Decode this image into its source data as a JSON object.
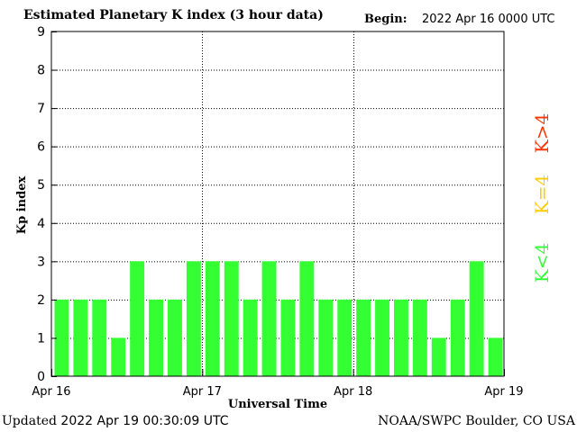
{
  "header": {
    "title": "Estimated Planetary K index (3 hour data)",
    "begin_label": "Begin:",
    "begin_value": "2022 Apr 16 0000 UTC"
  },
  "footer": {
    "updated_label": "Updated",
    "updated_value": "2022 Apr 19 00:30:09 UTC",
    "source": "NOAA/SWPC Boulder, CO USA"
  },
  "legend": {
    "low": {
      "text": "K<4",
      "color": "#33ff33"
    },
    "equal": {
      "text": "K=4",
      "color": "#ffcc00"
    },
    "high": {
      "text": "K>4",
      "color": "#ff3300"
    }
  },
  "chart_data": {
    "type": "bar",
    "title": "Estimated Planetary K index (3 hour data)",
    "xlabel": "Universal Time",
    "ylabel": "Kp index",
    "ylim": [
      0,
      9
    ],
    "yticks": [
      "0",
      "1",
      "2",
      "3",
      "4",
      "5",
      "6",
      "7",
      "8",
      "9"
    ],
    "xticks": [
      "Apr 16",
      "Apr 17",
      "Apr 18",
      "Apr 19"
    ],
    "grid": true,
    "bar_color": "#33ff33",
    "values": [
      2,
      2,
      2,
      1,
      3,
      2,
      2,
      3,
      3,
      3,
      2,
      3,
      2,
      3,
      2,
      2,
      2,
      2,
      2,
      2,
      1,
      2,
      3,
      1
    ]
  }
}
